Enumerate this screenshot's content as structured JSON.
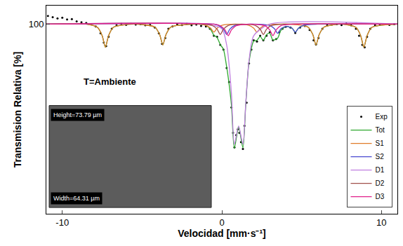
{
  "chart_data": {
    "type": "line",
    "xlabel": "Velocidad [mm·s⁻¹]",
    "ylabel": "Transmision Relativa [%]",
    "xlim": [
      -11,
      11
    ],
    "xticks": [
      -10,
      0,
      10
    ],
    "ylim": [
      91.8,
      100.8
    ],
    "yticks": [
      100
    ],
    "grid": false,
    "legend": "lower right",
    "annotations": [
      "T=Ambiente",
      "Height=73.79 µm",
      "Width=64.31 µm"
    ],
    "series": [
      {
        "name": "Exp",
        "type": "scatter",
        "marker": "circle",
        "color": "#000000",
        "x": [
          -10.9,
          -10.6,
          -10.3,
          -10.0,
          -9.7,
          -9.4,
          -9.1,
          -8.8,
          -8.5,
          -8.2,
          -7.9,
          -7.6,
          -7.4,
          -7.25,
          -7.1,
          -6.9,
          -6.6,
          -6.3,
          -6.0,
          -5.7,
          -5.4,
          -5.1,
          -4.8,
          -4.5,
          -4.2,
          -3.95,
          -3.75,
          -3.55,
          -3.35,
          -3.1,
          -2.8,
          -2.5,
          -2.2,
          -1.9,
          -1.6,
          -1.3,
          -1.0,
          -0.75,
          -0.5,
          -0.3,
          -0.1,
          0.1,
          0.3,
          0.45,
          0.6,
          0.7,
          0.79,
          0.9,
          1.0,
          1.1,
          1.2,
          1.32,
          1.42,
          1.55,
          1.7,
          1.85,
          2.0,
          2.2,
          2.4,
          2.6,
          2.8,
          3.0,
          3.2,
          3.4,
          3.6,
          3.8,
          4.0,
          4.3,
          4.6,
          4.9,
          5.2,
          5.5,
          5.75,
          5.9,
          6.05,
          6.3,
          6.6,
          6.9,
          7.2,
          7.5,
          7.8,
          8.1,
          8.4,
          8.6,
          8.8,
          8.95,
          9.1,
          9.3,
          9.6,
          9.9,
          10.2,
          10.5,
          10.8
        ],
        "values": [
          100.35,
          100.3,
          100.25,
          100.28,
          100.2,
          100.22,
          100.12,
          100.08,
          100.05,
          100.0,
          99.9,
          99.6,
          99.2,
          99.05,
          99.45,
          99.8,
          99.95,
          100.02,
          99.97,
          100.03,
          99.98,
          100.0,
          99.95,
          99.97,
          99.85,
          99.6,
          99.15,
          99.4,
          99.8,
          99.9,
          100.0,
          99.96,
          100.02,
          99.95,
          99.98,
          99.92,
          99.9,
          99.8,
          99.5,
          99.45,
          99.1,
          98.9,
          98.1,
          97.5,
          96.4,
          95.3,
          94.67,
          95.2,
          95.45,
          95.3,
          94.9,
          94.6,
          95.6,
          96.6,
          98.3,
          98.9,
          99.3,
          99.25,
          99.5,
          99.3,
          99.5,
          99.65,
          99.3,
          99.35,
          99.65,
          99.8,
          99.88,
          99.85,
          99.62,
          99.85,
          99.92,
          99.75,
          99.3,
          99.12,
          99.4,
          99.8,
          99.95,
          99.98,
          100.0,
          99.96,
          100.02,
          99.95,
          99.8,
          99.5,
          99.1,
          99.0,
          99.45,
          99.8,
          99.95,
          99.98,
          100.0,
          99.97,
          100.0
        ]
      },
      {
        "name": "Tot",
        "type": "line",
        "color": "#2ea82e",
        "x": [
          -11,
          -8.5,
          -7.8,
          -7.5,
          -7.3,
          -7.1,
          -6.8,
          -5.5,
          -4.2,
          -3.9,
          -3.7,
          -3.5,
          -3.2,
          -1.5,
          -1.0,
          -0.7,
          -0.5,
          -0.3,
          -0.1,
          0.1,
          0.3,
          0.4,
          0.6,
          0.78,
          1.05,
          1.32,
          1.5,
          1.7,
          2.0,
          2.2,
          2.4,
          2.6,
          2.8,
          3.0,
          3.2,
          3.5,
          3.7,
          4.05,
          4.4,
          4.6,
          4.8,
          5.1,
          5.4,
          5.7,
          5.9,
          6.1,
          6.4,
          7.5,
          8.4,
          8.7,
          8.9,
          9.1,
          9.4,
          11
        ],
        "values": [
          100,
          100,
          99.86,
          99.5,
          99.0,
          99.5,
          99.86,
          100,
          99.87,
          99.55,
          99.1,
          99.55,
          99.87,
          100,
          99.95,
          99.77,
          99.52,
          99.42,
          99.12,
          98.91,
          98.15,
          97.69,
          96.5,
          94.62,
          95.55,
          94.65,
          96.55,
          98.35,
          99.27,
          99.3,
          99.46,
          99.3,
          99.54,
          99.61,
          99.31,
          99.4,
          99.73,
          99.9,
          99.82,
          99.65,
          99.82,
          99.93,
          99.87,
          99.55,
          99.1,
          99.55,
          99.87,
          100,
          99.86,
          99.5,
          99.0,
          99.5,
          99.86,
          100
        ]
      },
      {
        "name": "S1",
        "type": "line",
        "color": "#e07b2a",
        "x": [
          -11,
          -8.5,
          -7.8,
          -7.5,
          -7.3,
          -7.1,
          -6.8,
          -5.5,
          -4.2,
          -3.9,
          -3.7,
          -3.5,
          -3.2,
          -1.5,
          -1.0,
          -0.7,
          -0.5,
          -0.3,
          0.0,
          0.85,
          1.7,
          2.0,
          2.2,
          2.4,
          2.7,
          4.0,
          5.4,
          5.7,
          5.9,
          6.1,
          6.4,
          7.5,
          8.4,
          8.7,
          8.9,
          9.1,
          9.4,
          11
        ],
        "values": [
          100,
          100,
          99.86,
          99.5,
          99.0,
          99.5,
          99.86,
          100,
          99.87,
          99.55,
          99.1,
          99.55,
          99.87,
          100,
          99.95,
          99.82,
          99.65,
          99.82,
          99.95,
          100,
          99.95,
          99.82,
          99.65,
          99.82,
          99.95,
          100,
          99.87,
          99.55,
          99.1,
          99.55,
          99.87,
          100,
          99.86,
          99.5,
          99.0,
          99.5,
          99.86,
          100
        ]
      },
      {
        "name": "S2",
        "type": "line",
        "color": "#4a4ad0",
        "x": [
          -11,
          -0.5,
          -0.2,
          0.1,
          0.3,
          0.5,
          0.8,
          1.9,
          3.0,
          3.3,
          3.5,
          3.7,
          4.05,
          4.4,
          4.6,
          4.8,
          5.1,
          6.0,
          11
        ],
        "values": [
          100,
          100,
          99.94,
          99.78,
          99.55,
          99.78,
          99.94,
          100,
          99.94,
          99.8,
          99.6,
          99.8,
          99.9,
          99.82,
          99.65,
          99.82,
          99.95,
          100,
          100
        ]
      },
      {
        "name": "D1",
        "type": "line",
        "color": "#c07ee0",
        "x": [
          -11,
          -1,
          0.0,
          0.3,
          0.4,
          0.6,
          0.78,
          1.05,
          1.32,
          1.5,
          1.7,
          2.0,
          3.0,
          11
        ],
        "values": [
          100,
          100,
          99.8,
          99.1,
          98.6,
          97.0,
          94.8,
          95.6,
          94.8,
          96.6,
          98.4,
          99.5,
          100,
          100
        ]
      },
      {
        "name": "D2",
        "type": "line",
        "color": "#a0504a",
        "x": [
          -11,
          -0.6,
          -0.3,
          -0.1,
          0.1,
          0.4,
          1.25,
          2.1,
          2.4,
          2.6,
          2.8,
          3.1,
          4.0,
          11
        ],
        "values": [
          100,
          99.94,
          99.78,
          99.55,
          99.78,
          99.94,
          100,
          99.94,
          99.78,
          99.55,
          99.78,
          99.94,
          100,
          100
        ]
      },
      {
        "name": "D3",
        "type": "line",
        "color": "#e0208a",
        "x": [
          -11,
          -0.5,
          -0.1,
          0.2,
          0.4,
          0.6,
          0.9,
          1.8,
          2.7,
          3.0,
          3.2,
          3.4,
          3.7,
          4.5,
          11
        ],
        "values": [
          100,
          100,
          99.93,
          99.75,
          99.5,
          99.75,
          99.93,
          100,
          99.93,
          99.75,
          99.5,
          99.75,
          99.93,
          100,
          100
        ]
      }
    ]
  }
}
